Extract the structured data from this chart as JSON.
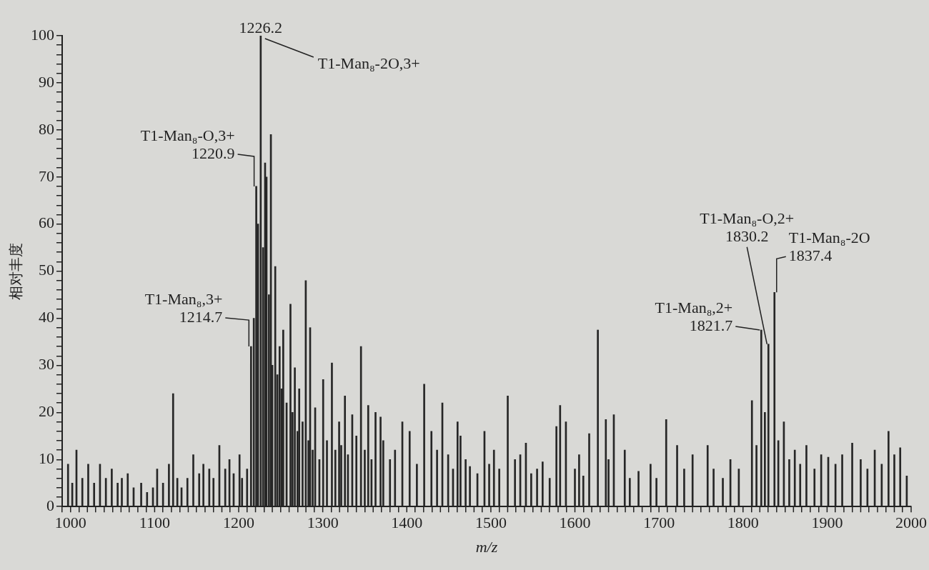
{
  "chart_data": {
    "type": "bar",
    "xlabel": "m/z",
    "ylabel": "相对丰度",
    "color": "#262626",
    "grid": false,
    "legend": false,
    "xlim": [
      990,
      2000
    ],
    "xticks": [
      1000,
      {
        "value": 1020,
        "label": null
      },
      {
        "value": 1040,
        "label": null
      },
      {
        "value": 1060,
        "label": null
      },
      {
        "value": 1080,
        "label": null
      },
      1100,
      {
        "value": 1120,
        "label": null
      },
      {
        "value": 1140,
        "label": null
      },
      {
        "value": 1160,
        "label": null
      },
      {
        "value": 1180,
        "label": null
      },
      1200,
      {
        "value": 1220,
        "label": null
      },
      {
        "value": 1240,
        "label": null
      },
      {
        "value": 1260,
        "label": null
      },
      {
        "value": 1280,
        "label": null
      },
      1300,
      {
        "value": 1320,
        "label": null
      },
      {
        "value": 1340,
        "label": null
      },
      {
        "value": 1360,
        "label": null
      },
      {
        "value": 1380,
        "label": null
      },
      1400,
      {
        "value": 1420,
        "label": null
      },
      {
        "value": 1440,
        "label": null
      },
      {
        "value": 1460,
        "label": null
      },
      {
        "value": 1480,
        "label": null
      },
      1500,
      {
        "value": 1520,
        "label": null
      },
      {
        "value": 1540,
        "label": null
      },
      {
        "value": 1560,
        "label": null
      },
      {
        "value": 1580,
        "label": null
      },
      1600,
      {
        "value": 1620,
        "label": null
      },
      {
        "value": 1640,
        "label": null
      },
      {
        "value": 1660,
        "label": null
      },
      {
        "value": 1680,
        "label": null
      },
      1700,
      {
        "value": 1720,
        "label": null
      },
      {
        "value": 1740,
        "label": null
      },
      {
        "value": 1760,
        "label": null
      },
      {
        "value": 1780,
        "label": null
      },
      1800,
      {
        "value": 1820,
        "label": null
      },
      {
        "value": 1840,
        "label": null
      },
      {
        "value": 1860,
        "label": null
      },
      {
        "value": 1880,
        "label": null
      },
      1900,
      {
        "value": 1920,
        "label": null
      },
      {
        "value": 1940,
        "label": null
      },
      {
        "value": 1960,
        "label": null
      },
      {
        "value": 1980,
        "label": null
      },
      2000
    ],
    "ylim": [
      0,
      100
    ],
    "yticks": [
      0,
      {
        "value": 2,
        "label": null
      },
      {
        "value": 4,
        "label": null
      },
      {
        "value": 6,
        "label": null
      },
      {
        "value": 8,
        "label": null
      },
      10,
      {
        "value": 12,
        "label": null
      },
      {
        "value": 14,
        "label": null
      },
      {
        "value": 16,
        "label": null
      },
      {
        "value": 18,
        "label": null
      },
      20,
      {
        "value": 22,
        "label": null
      },
      {
        "value": 24,
        "label": null
      },
      {
        "value": 26,
        "label": null
      },
      {
        "value": 28,
        "label": null
      },
      30,
      {
        "value": 32,
        "label": null
      },
      {
        "value": 34,
        "label": null
      },
      {
        "value": 36,
        "label": null
      },
      {
        "value": 38,
        "label": null
      },
      40,
      {
        "value": 42,
        "label": null
      },
      {
        "value": 44,
        "label": null
      },
      {
        "value": 46,
        "label": null
      },
      {
        "value": 48,
        "label": null
      },
      50,
      {
        "value": 52,
        "label": null
      },
      {
        "value": 54,
        "label": null
      },
      {
        "value": 56,
        "label": null
      },
      {
        "value": 58,
        "label": null
      },
      60,
      {
        "value": 62,
        "label": null
      },
      {
        "value": 64,
        "label": null
      },
      {
        "value": 66,
        "label": null
      },
      {
        "value": 68,
        "label": null
      },
      70,
      {
        "value": 72,
        "label": null
      },
      {
        "value": 74,
        "label": null
      },
      {
        "value": 76,
        "label": null
      },
      {
        "value": 78,
        "label": null
      },
      80,
      {
        "value": 82,
        "label": null
      },
      {
        "value": 84,
        "label": null
      },
      {
        "value": 86,
        "label": null
      },
      {
        "value": 88,
        "label": null
      },
      90,
      {
        "value": 92,
        "label": null
      },
      {
        "value": 94,
        "label": null
      },
      {
        "value": 96,
        "label": null
      },
      {
        "value": 98,
        "label": null
      },
      100
    ],
    "x": [
      997,
      1002,
      1007,
      1014,
      1021,
      1028,
      1035,
      1042,
      1049,
      1056,
      1061,
      1068,
      1075,
      1084,
      1091,
      1098,
      1103,
      1110,
      1117,
      1122,
      1127,
      1132,
      1139,
      1146,
      1153,
      1158,
      1165,
      1170,
      1177,
      1184,
      1189,
      1194,
      1201,
      1204,
      1210,
      1214.7,
      1218,
      1220.9,
      1223,
      1226.2,
      1229,
      1231.4,
      1233.1,
      1236,
      1238.3,
      1240,
      1243.5,
      1246,
      1248.7,
      1251,
      1253,
      1257,
      1261.6,
      1264,
      1266.8,
      1270,
      1272,
      1276,
      1279.8,
      1283,
      1285,
      1288,
      1291,
      1296,
      1300.5,
      1305,
      1310.9,
      1315,
      1319.5,
      1322,
      1326.4,
      1330,
      1335.1,
      1340,
      1345.5,
      1350,
      1354.1,
      1358,
      1362.8,
      1368.8,
      1372,
      1380,
      1386,
      1394.7,
      1403.4,
      1412,
      1420.7,
      1429.3,
      1436,
      1442.3,
      1449.2,
      1455,
      1460.4,
      1463.9,
      1470,
      1475.1,
      1484,
      1492.4,
      1498,
      1503.7,
      1510,
      1520.1,
      1528.7,
      1535,
      1541.7,
      1548,
      1555,
      1561.6,
      1570,
      1578,
      1582.4,
      1589.3,
      1600,
      1605,
      1610,
      1617,
      1627.3,
      1636.8,
      1640,
      1646.3,
      1659.3,
      1665.3,
      1675.7,
      1690,
      1697,
      1708.6,
      1721.6,
      1730,
      1740,
      1757.9,
      1765,
      1776,
      1785,
      1795,
      1810.6,
      1816,
      1821.7,
      1826,
      1830.2,
      1837.4,
      1842,
      1848.6,
      1855,
      1861.6,
      1868,
      1875.4,
      1885,
      1893,
      1901.4,
      1910,
      1918,
      1929.9,
      1940,
      1948,
      1956.7,
      1965,
      1973.1,
      1980,
      1987,
      1994.8
    ],
    "values": [
      9,
      5,
      12,
      6,
      9,
      5,
      9,
      6,
      8,
      5,
      6,
      7,
      4,
      5,
      3,
      4,
      8,
      5,
      9,
      24,
      6,
      4,
      6,
      11,
      7,
      9,
      8,
      6,
      13,
      8,
      10,
      7,
      11,
      6,
      8,
      34,
      40,
      68,
      60,
      100,
      55,
      73,
      70,
      45,
      79,
      30,
      51,
      28,
      34,
      25,
      37.5,
      22,
      43,
      20,
      29.5,
      16,
      25,
      18,
      48,
      14,
      38,
      12,
      21,
      10,
      27,
      14,
      30.5,
      12,
      18,
      13,
      23.5,
      11,
      19.5,
      15,
      34,
      12,
      21.5,
      10,
      20,
      19,
      14,
      10,
      12,
      18,
      16,
      9,
      26,
      16,
      12,
      22,
      11,
      8,
      18,
      15,
      10,
      8.5,
      7,
      16,
      9,
      12,
      8,
      23.5,
      10,
      11,
      13.5,
      7,
      8,
      9.5,
      6,
      17,
      21.5,
      18,
      8,
      11,
      6.5,
      15.5,
      37.5,
      18.5,
      10,
      19.5,
      12,
      6,
      7.5,
      9,
      6,
      18.5,
      13,
      8,
      11,
      13,
      8,
      6,
      10,
      8,
      22.5,
      13,
      37.5,
      20,
      34.5,
      45.5,
      14,
      18,
      10,
      12,
      9,
      13,
      8,
      11,
      10.5,
      9,
      11,
      13.5,
      10,
      8,
      12,
      9,
      16,
      11,
      12.5,
      6.5
    ],
    "annotations": [
      {
        "text": "T1-Man₈,3+\n1214.7",
        "x": 1214.7,
        "y": 34
      },
      {
        "text": "T1-Man₈-O,3+\n1220.9",
        "x": 1220.9,
        "y": 68
      },
      {
        "text": "1226.2",
        "x": 1226.2,
        "y": 100
      },
      {
        "text": "T1-Man₈-2O,3+",
        "x": 1226.2,
        "y": 100
      },
      {
        "text": "T1-Man₈,2+\n1821.7",
        "x": 1821.7,
        "y": 37.5
      },
      {
        "text": "T1-Man₈-O,2+\n1830.2",
        "x": 1830.2,
        "y": 34.5
      },
      {
        "text": "T1-Man₈-2O\n1837.4",
        "x": 1837.4,
        "y": 45.5
      }
    ]
  }
}
